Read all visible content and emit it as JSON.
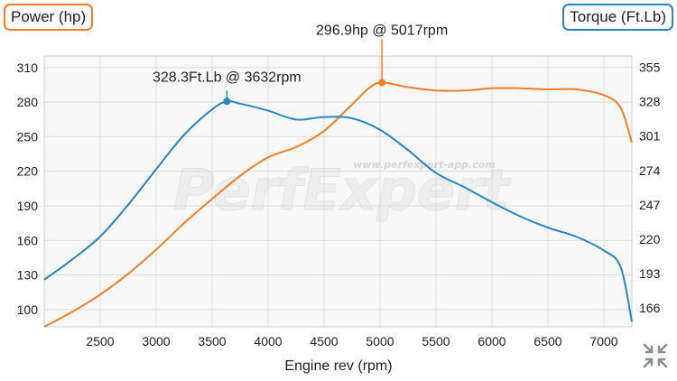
{
  "badges": {
    "power": "Power (hp)",
    "torque": "Torque (Ft.Lb)"
  },
  "watermark": {
    "logo": "PerfExpert",
    "url": "www.perfexpert-app.com"
  },
  "colors": {
    "power": "#f07f2a",
    "torque": "#2a85c0",
    "background": "#f7f7f7",
    "grid": "#dcdcdc"
  },
  "controls": {
    "fit_icon": "fit-to-screen-icon"
  },
  "chart_data": {
    "type": "line",
    "xlabel": "Engine rev (rpm)",
    "xlim": [
      2000,
      7250
    ],
    "x_ticks": [
      2500,
      3000,
      3500,
      4000,
      4500,
      5000,
      5500,
      6000,
      6500,
      7000
    ],
    "left_axis": {
      "label": "Power (hp)",
      "ylim": [
        85,
        320
      ],
      "ticks": [
        100,
        130,
        160,
        190,
        220,
        250,
        280,
        310
      ]
    },
    "right_axis": {
      "label": "Torque (Ft.Lb)",
      "ylim": [
        151,
        364
      ],
      "ticks": [
        166,
        193,
        220,
        247,
        274,
        301,
        328,
        355
      ]
    },
    "grid": true,
    "series": [
      {
        "name": "Power (hp)",
        "axis": "left",
        "x": [
          2000,
          2250,
          2500,
          2750,
          3000,
          3250,
          3500,
          3750,
          4000,
          4250,
          4500,
          4750,
          4900,
          5017,
          5250,
          5500,
          5750,
          6000,
          6250,
          6500,
          6750,
          7000,
          7150,
          7250
        ],
        "y": [
          85,
          98,
          113,
          131,
          152,
          175,
          196,
          216,
          232,
          241,
          255,
          278,
          292,
          296.9,
          293,
          290,
          290,
          292,
          292,
          291,
          291,
          286,
          275,
          245
        ]
      },
      {
        "name": "Torque (Ft.Lb)",
        "axis": "right",
        "x": [
          2000,
          2250,
          2500,
          2750,
          3000,
          3250,
          3500,
          3632,
          3750,
          4000,
          4250,
          4500,
          4750,
          5000,
          5250,
          5500,
          5750,
          6000,
          6250,
          6500,
          6750,
          7000,
          7150,
          7250
        ],
        "y": [
          188,
          204,
          222,
          247,
          275,
          302,
          322,
          328.3,
          326.5,
          321,
          314,
          316,
          315,
          306,
          290,
          272,
          261,
          249,
          238,
          229,
          222,
          211,
          198,
          155
        ]
      }
    ],
    "annotations": [
      {
        "text": "296.9hp @ 5017rpm",
        "series": 0,
        "x": 5017,
        "y": 296.9
      },
      {
        "text": "328.3Ft.Lb @ 3632rpm",
        "series": 1,
        "x": 3632,
        "y": 328.3
      }
    ]
  }
}
